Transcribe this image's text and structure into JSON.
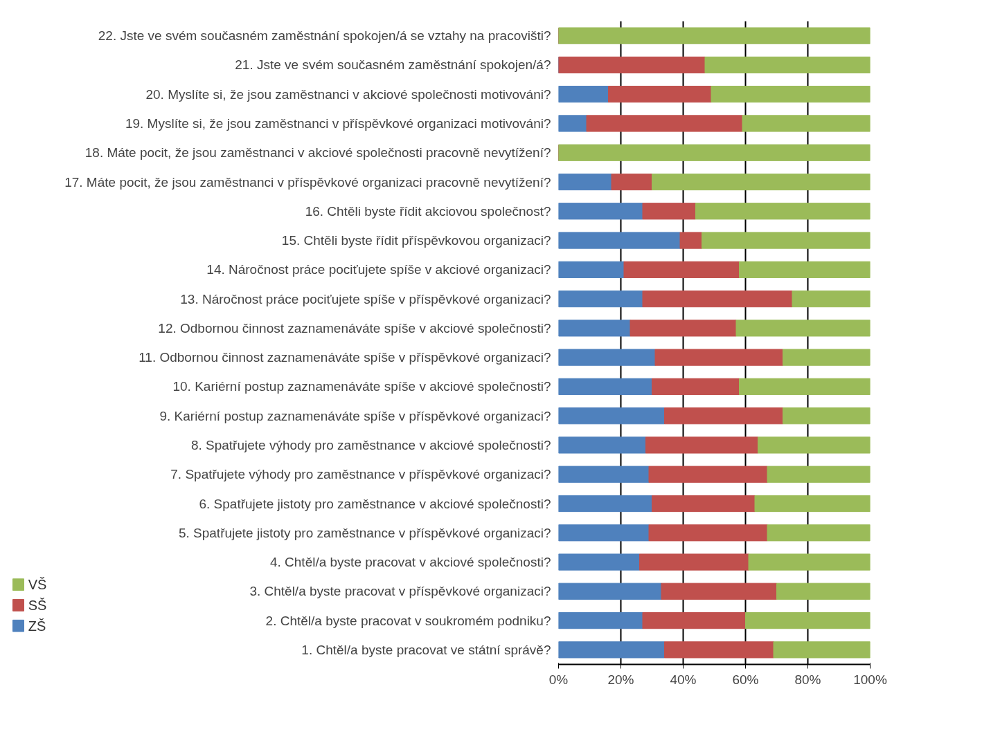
{
  "chart_data": {
    "type": "bar",
    "orientation": "horizontal",
    "stacked": true,
    "categories": [
      "22. Jste ve svém současném zaměstnání spokojen/á se vztahy na pracovišti?",
      "21. Jste ve svém současném zaměstnání spokojen/á?",
      "20. Myslíte si, že jsou zaměstnanci v akciové společnosti motivováni?",
      "19. Myslíte si, že jsou zaměstnanci v příspěvkové organizaci motivováni?",
      "18. Máte pocit, že jsou zaměstnanci v akciové společnosti pracovně nevytížení?",
      "17. Máte pocit, že jsou zaměstnanci v příspěvkové organizaci pracovně nevytížení?",
      "16. Chtěli byste řídit akciovou společnost?",
      "15. Chtěli byste řídit příspěvkovou organizaci?",
      "14. Náročnost práce pociťujete spíše v akciové organizaci?",
      "13. Náročnost práce pociťujete spíše v příspěvkové organizaci?",
      "12. Odbornou činnost zaznamenáváte spíše v akciové společnosti?",
      "11. Odbornou činnost zaznamenáváte spíše v příspěvkové organizaci?",
      "10. Kariérní postup zaznamenáváte spíše v akciové společnosti?",
      "9. Kariérní postup zaznamenáváte spíše v příspěvkové organizaci?",
      "8. Spatřujete výhody pro zaměstnance v akciové společnosti?",
      "7. Spatřujete výhody pro zaměstnance v příspěvkové organizaci?",
      "6. Spatřujete jistoty pro zaměstnance v akciové společnosti?",
      "5. Spatřujete jistoty pro zaměstnance v příspěvkové organizaci?",
      "4. Chtěl/a byste pracovat v akciové společnosti?",
      "3. Chtěl/a byste pracovat v příspěvkové organizaci?",
      "2. Chtěl/a byste pracovat v soukromém podniku?",
      "1. Chtěl/a byste pracovat ve státní správě?"
    ],
    "series": [
      {
        "name": "ZŠ",
        "color": "#4f81bd",
        "values": [
          0,
          0,
          16,
          9,
          0,
          17,
          27,
          39,
          21,
          27,
          23,
          31,
          30,
          34,
          28,
          29,
          30,
          29,
          26,
          33,
          27,
          34
        ]
      },
      {
        "name": "SŠ",
        "color": "#c0504d",
        "values": [
          0,
          47,
          33,
          50,
          0,
          13,
          17,
          7,
          37,
          48,
          34,
          41,
          28,
          38,
          36,
          38,
          33,
          38,
          35,
          37,
          33,
          35
        ]
      },
      {
        "name": "VŠ",
        "color": "#9bbb59",
        "values": [
          100,
          53,
          51,
          41,
          100,
          70,
          56,
          54,
          42,
          25,
          43,
          28,
          42,
          28,
          36,
          33,
          37,
          33,
          39,
          30,
          40,
          31
        ]
      }
    ],
    "xlim": [
      0,
      100
    ],
    "xticks": [
      {
        "value": 0,
        "label": "0%"
      },
      {
        "value": 20,
        "label": "20%"
      },
      {
        "value": 40,
        "label": "40%"
      },
      {
        "value": 60,
        "label": "60%"
      },
      {
        "value": 80,
        "label": "80%"
      },
      {
        "value": 100,
        "label": "100%"
      }
    ],
    "grid": "x",
    "legend": "bottom left"
  }
}
